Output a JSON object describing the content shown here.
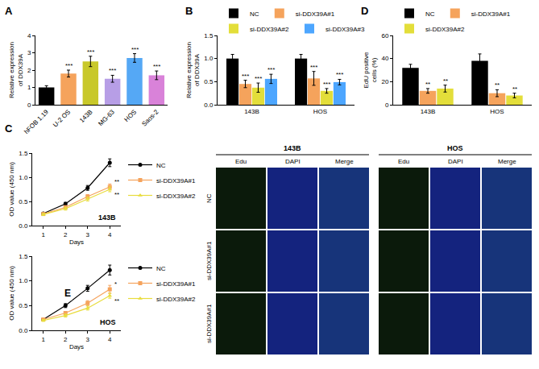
{
  "chart_data": [
    {
      "panel_label": "A",
      "type": "bar",
      "y_label": "Relative expression of DDX39A",
      "categories": [
        "hFOB 1.19",
        "U-2 OS",
        "143B",
        "MG-63",
        "HOS",
        "Saos-2"
      ],
      "values": [
        1.0,
        1.8,
        2.5,
        1.5,
        2.7,
        1.7
      ],
      "errors": [
        0.1,
        0.2,
        0.3,
        0.2,
        0.25,
        0.25
      ],
      "significance": [
        null,
        "***",
        "***",
        "***",
        "***",
        "***"
      ],
      "colors": [
        "#000000",
        "#f5a35c",
        "#c8c82a",
        "#b79ee6",
        "#55a8f5",
        "#d982d9"
      ],
      "ylim": [
        0,
        4
      ],
      "yticks": [
        0,
        1,
        2,
        3,
        4
      ]
    },
    {
      "panel_label": "B",
      "type": "bar",
      "y_label": "Relative expression of DDX39A",
      "categories": [
        "143B",
        "HOS"
      ],
      "series": [
        {
          "name": "NC",
          "color": "#000000",
          "values": [
            1.0,
            1.0
          ],
          "errors": [
            0.09,
            0.09
          ],
          "significance": [
            null,
            null
          ]
        },
        {
          "name": "si-DDX39A#1",
          "color": "#f5a35c",
          "values": [
            0.45,
            0.57
          ],
          "errors": [
            0.08,
            0.15
          ],
          "significance": [
            "***",
            "***"
          ]
        },
        {
          "name": "si-DDX39A#2",
          "color": "#e3de3a",
          "values": [
            0.37,
            0.3
          ],
          "errors": [
            0.1,
            0.05
          ],
          "significance": [
            "***",
            "***"
          ]
        },
        {
          "name": "si-DDX39A#3",
          "color": "#4da6ff",
          "values": [
            0.56,
            0.49
          ],
          "errors": [
            0.1,
            0.06
          ],
          "significance": [
            "***",
            "***"
          ]
        }
      ],
      "ylim": [
        0,
        1.5
      ],
      "yticks": [
        {
          "value": 0,
          "label": "0.0"
        },
        {
          "value": 0.5,
          "label": "0.5"
        },
        {
          "value": 1,
          "label": "1.0"
        },
        {
          "value": 1.5,
          "label": "1.5"
        }
      ],
      "legend": "top"
    },
    {
      "panel_label": "D",
      "type": "bar",
      "y_label": "EdU positive cells (%)",
      "categories": [
        "143B",
        "HOS"
      ],
      "series": [
        {
          "name": "NC",
          "color": "#000000",
          "values": [
            32,
            38
          ],
          "errors": [
            3,
            6
          ],
          "significance": [
            null,
            null
          ]
        },
        {
          "name": "si-DDX39A#1",
          "color": "#f5a35c",
          "values": [
            12,
            10
          ],
          "errors": [
            2,
            3
          ],
          "significance": [
            "**",
            "**"
          ]
        },
        {
          "name": "si-DDX39A#2",
          "color": "#e3de3a",
          "values": [
            14,
            8
          ],
          "errors": [
            3,
            2
          ],
          "significance": [
            "**",
            "**"
          ]
        }
      ],
      "ylim": [
        0,
        60
      ],
      "yticks": [
        0,
        20,
        40,
        60
      ],
      "legend": "top"
    },
    {
      "panel_label": "C",
      "type": "line",
      "title": "143B",
      "x_label": "Days",
      "y_label": "OD value (450 nm)",
      "x": [
        1,
        2,
        3,
        4
      ],
      "series": [
        {
          "name": "NC",
          "color": "#000000",
          "marker": "circle",
          "values": [
            0.25,
            0.45,
            0.78,
            1.3
          ],
          "errors": [
            0.02,
            0.03,
            0.05,
            0.08
          ],
          "significance": [
            null,
            null,
            null,
            null
          ]
        },
        {
          "name": "si-DDX39A#1",
          "color": "#f5a35c",
          "marker": "square",
          "values": [
            0.24,
            0.38,
            0.6,
            0.8
          ],
          "errors": [
            0.02,
            0.03,
            0.04,
            0.06
          ],
          "significance": [
            null,
            null,
            null,
            "**"
          ]
        },
        {
          "name": "si-DDX39A#2",
          "color": "#e8dc3c",
          "marker": "triangle-up",
          "values": [
            0.23,
            0.35,
            0.55,
            0.75
          ],
          "errors": [
            0.02,
            0.03,
            0.04,
            0.05
          ],
          "significance": [
            null,
            null,
            null,
            "**"
          ]
        }
      ],
      "xlim": [
        0.5,
        4.5
      ],
      "xticks": [
        1,
        2,
        3,
        4
      ],
      "ylim": [
        0,
        1.5
      ],
      "yticks": [
        {
          "value": 0,
          "label": "0.0"
        },
        {
          "value": 0.5,
          "label": "0.5"
        },
        {
          "value": 1,
          "label": "1.0"
        },
        {
          "value": 1.5,
          "label": "1.5"
        }
      ],
      "legend": "right"
    },
    {
      "type": "line",
      "title": "HOS",
      "x_label": "Days",
      "y_label": "OD value (450 nm)",
      "x": [
        1,
        2,
        3,
        4
      ],
      "series": [
        {
          "name": "NC",
          "color": "#000000",
          "marker": "circle",
          "values": [
            0.22,
            0.5,
            0.85,
            1.22
          ],
          "errors": [
            0.02,
            0.04,
            0.06,
            0.1
          ],
          "significance": [
            null,
            null,
            null,
            null
          ]
        },
        {
          "name": "si-DDX39A#1",
          "color": "#f5a35c",
          "marker": "square",
          "values": [
            0.22,
            0.35,
            0.55,
            0.83
          ],
          "errors": [
            0.02,
            0.03,
            0.05,
            0.08
          ],
          "significance": [
            null,
            null,
            null,
            "*"
          ]
        },
        {
          "name": "si-DDX39A#2",
          "color": "#e8dc3c",
          "marker": "triangle-up",
          "values": [
            0.2,
            0.3,
            0.45,
            0.7
          ],
          "errors": [
            0.02,
            0.03,
            0.04,
            0.05
          ],
          "significance": [
            null,
            null,
            null,
            "**"
          ]
        }
      ],
      "annotations": [
        {
          "text": "E",
          "x": 2.1,
          "y": 0.75
        }
      ],
      "xlim": [
        0.5,
        4.5
      ],
      "xticks": [
        1,
        2,
        3,
        4
      ],
      "ylim": [
        0,
        1.5
      ],
      "yticks": [
        {
          "value": 0,
          "label": "0.0"
        },
        {
          "value": 0.5,
          "label": "0.5"
        },
        {
          "value": 1,
          "label": "1.0"
        },
        {
          "value": 1.5,
          "label": "1.5"
        }
      ],
      "legend": "right"
    }
  ],
  "image_panel": {
    "row_labels": [
      "NC",
      "si-DDX39A#1",
      "si-DDX39A#1"
    ],
    "groups": [
      {
        "title": "143B",
        "columns": [
          "Edu",
          "DAPI",
          "Merge"
        ]
      },
      {
        "title": "HOS",
        "columns": [
          "Edu",
          "DAPI",
          "Merge"
        ]
      }
    ]
  }
}
